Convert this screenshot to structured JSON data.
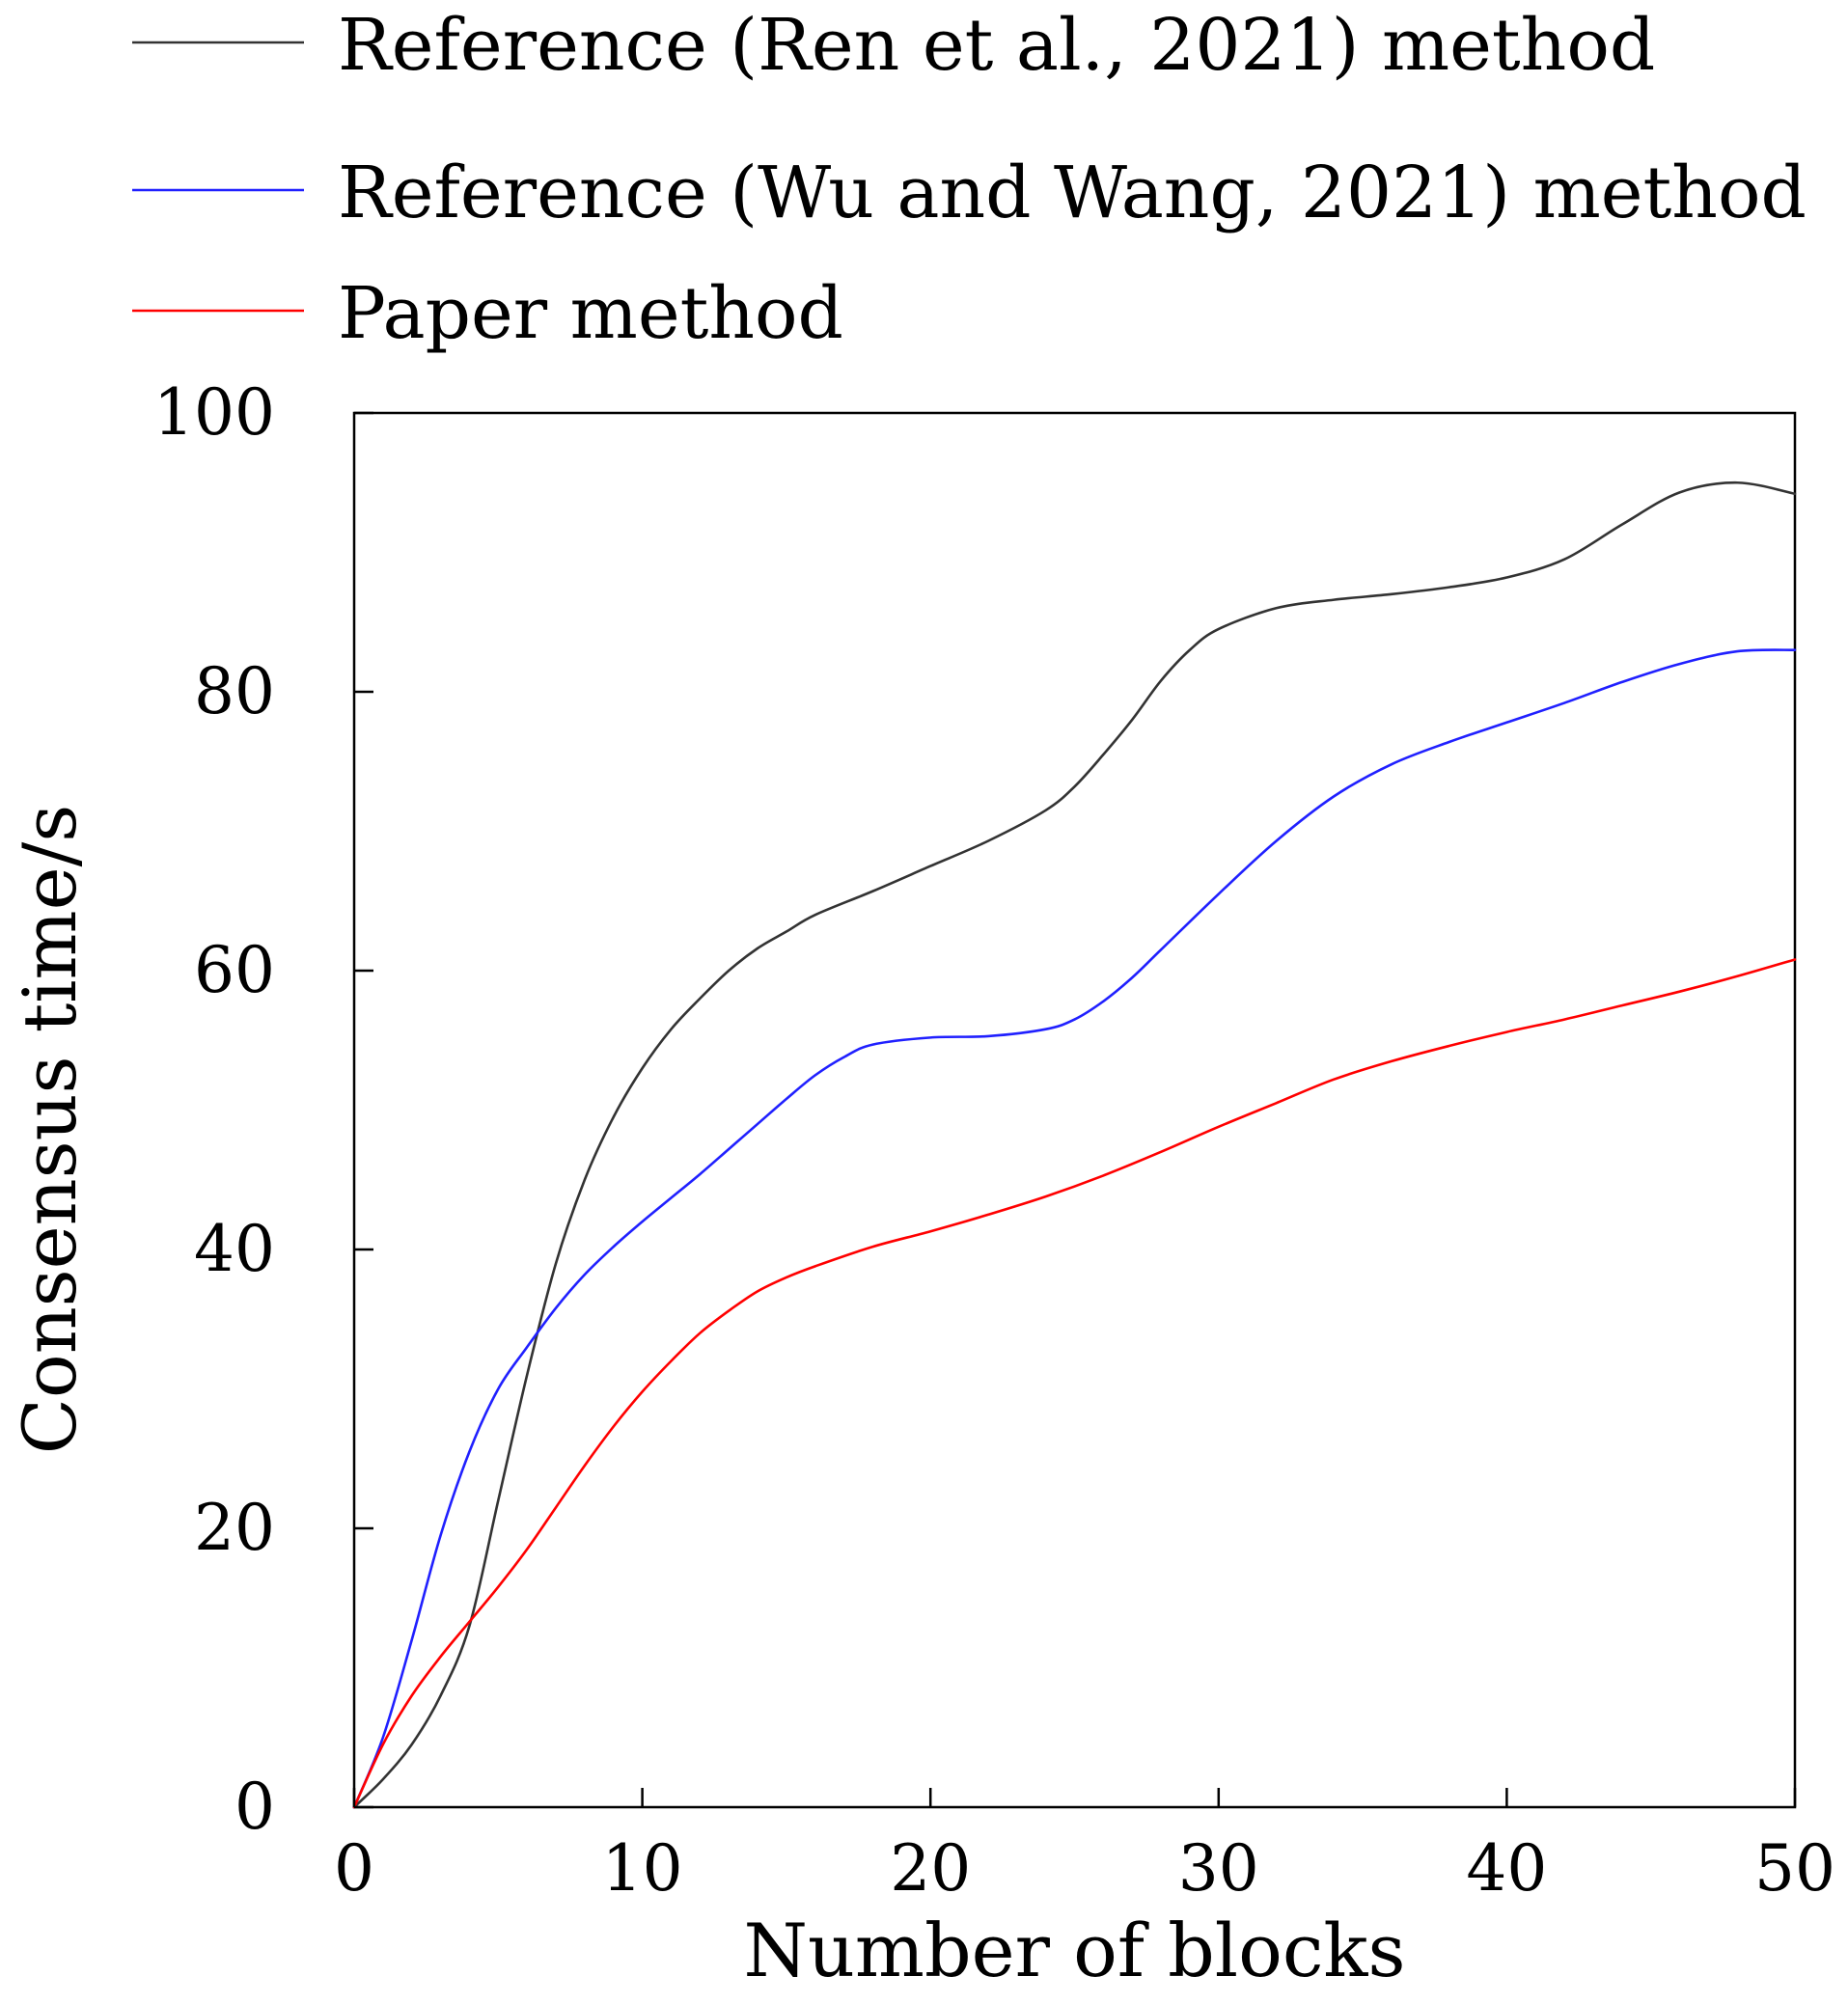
{
  "chart_data": {
    "type": "line",
    "xlabel": "Number of blocks",
    "ylabel": "Consensus time/s",
    "xlim": [
      0,
      50
    ],
    "ylim": [
      0,
      100
    ],
    "x_ticks": [
      "0",
      "10",
      "20",
      "30",
      "40",
      "50"
    ],
    "y_ticks": [
      "0",
      "20",
      "40",
      "60",
      "80",
      "100"
    ],
    "grid": false,
    "legend_position": "top-left, above plot",
    "series": [
      {
        "name": "Reference (Ren et al., 2021) method",
        "color": "#333333",
        "x": [
          0,
          1,
          2,
          3,
          4,
          5,
          6,
          7,
          8,
          9,
          10,
          11,
          12,
          13,
          14,
          15,
          16,
          18,
          20,
          22,
          24,
          25,
          26,
          27,
          28,
          29,
          30,
          32,
          34,
          36,
          38,
          40,
          42,
          44,
          46,
          48,
          50
        ],
        "y": [
          0,
          2,
          4.5,
          8,
          13,
          22,
          31,
          39,
          45,
          49.5,
          53,
          55.8,
          58,
          60,
          61.6,
          62.8,
          64,
          65.7,
          67.5,
          69.3,
          71.5,
          73.2,
          75.5,
          78,
          80.8,
          83,
          84.5,
          86,
          86.6,
          87,
          87.5,
          88.2,
          89.5,
          92,
          94.3,
          95,
          94.2
        ]
      },
      {
        "name": "Reference (Wu and Wang, 2021) method",
        "color": "#2020ff",
        "x": [
          0,
          1,
          2,
          3,
          4,
          5,
          6,
          7,
          8,
          9,
          10,
          11,
          12,
          13,
          14,
          15,
          16,
          17,
          18,
          20,
          22,
          24,
          25,
          26,
          27,
          28,
          30,
          32,
          34,
          36,
          38,
          40,
          42,
          44,
          46,
          48,
          50
        ],
        "y": [
          0,
          5,
          12,
          19.5,
          25.5,
          30,
          33,
          35.8,
          38.2,
          40.2,
          42,
          43.7,
          45.4,
          47.2,
          49,
          50.8,
          52.5,
          53.8,
          54.7,
          55.2,
          55.3,
          55.8,
          56.5,
          57.8,
          59.5,
          61.5,
          65.5,
          69.3,
          72.5,
          74.8,
          76.4,
          77.8,
          79.2,
          80.7,
          82,
          82.9,
          83
        ]
      },
      {
        "name": "Paper method",
        "color": "#ff0000",
        "x": [
          0,
          1,
          2,
          3,
          4,
          5,
          6,
          7,
          8,
          9,
          10,
          11,
          12,
          13,
          14,
          15,
          16,
          18,
          20,
          22,
          24,
          26,
          28,
          30,
          32,
          34,
          36,
          38,
          40,
          42,
          44,
          46,
          48,
          50
        ],
        "y": [
          0,
          4.5,
          8,
          10.8,
          13.3,
          15.8,
          18.5,
          21.5,
          24.5,
          27.3,
          29.8,
          32,
          34,
          35.6,
          37,
          38,
          38.8,
          40.2,
          41.3,
          42.5,
          43.8,
          45.3,
          47,
          48.8,
          50.5,
          52.2,
          53.5,
          54.6,
          55.6,
          56.5,
          57.5,
          58.5,
          59.6,
          60.8
        ]
      }
    ]
  }
}
